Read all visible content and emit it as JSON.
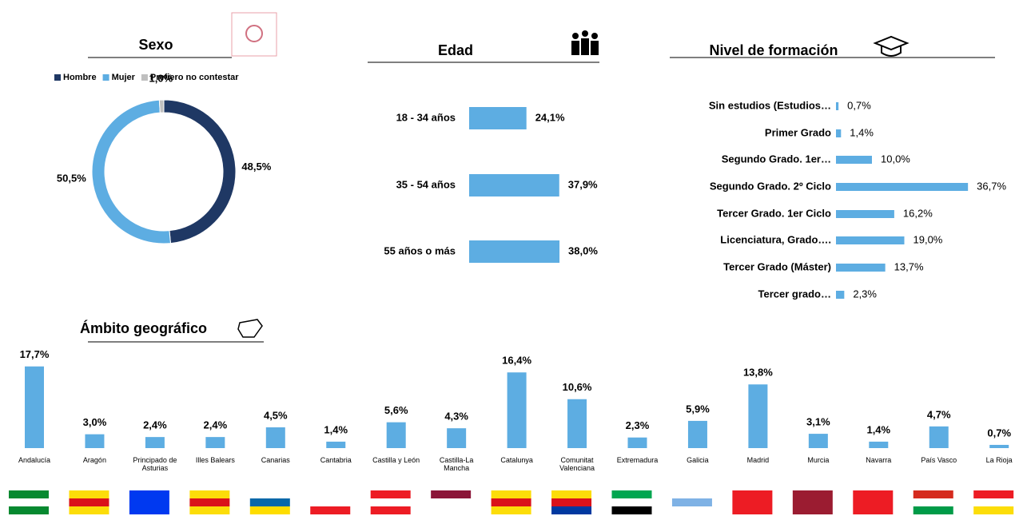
{
  "chart_data": [
    {
      "type": "donut",
      "title": "Sexo",
      "categories": [
        "Hombre",
        "Mujer",
        "Prefiero no contestar"
      ],
      "values": [
        48.5,
        50.5,
        1.0
      ],
      "value_labels": [
        "48,5%",
        "50,5%",
        "1,0%"
      ],
      "colors": [
        "#1f3864",
        "#5dade2",
        "#bfbfbf"
      ]
    },
    {
      "type": "hbar",
      "title": "Edad",
      "categories": [
        "18 - 34 años",
        "35 - 54 años",
        "55 años o más"
      ],
      "values": [
        24.1,
        37.9,
        38.0
      ],
      "value_labels": [
        "24,1%",
        "37,9%",
        "38,0%"
      ],
      "color": "#5dade2",
      "xlim": [
        0,
        40
      ]
    },
    {
      "type": "hbar",
      "title": "Nivel de formación",
      "categories": [
        "Sin estudios (Estudios…",
        "Primer Grado",
        "Segundo Grado. 1er…",
        "Segundo Grado. 2º Ciclo",
        "Tercer Grado. 1er Ciclo",
        "Licenciatura, Grado….",
        "Tercer Grado (Máster)",
        "Tercer grado…"
      ],
      "values": [
        0.7,
        1.4,
        10.0,
        36.7,
        16.2,
        19.0,
        13.7,
        2.3
      ],
      "value_labels": [
        "0,7%",
        "1,4%",
        "10,0%",
        "36,7%",
        "16,2%",
        "19,0%",
        "13,7%",
        "2,3%"
      ],
      "color": "#5dade2",
      "xlim": [
        0,
        40
      ]
    },
    {
      "type": "bar",
      "title": "Ámbito geográfico",
      "categories": [
        "Andalucía",
        "Aragón",
        "Principado de Asturias",
        "Illes Balears",
        "Canarias",
        "Cantabria",
        "Castilla y León",
        "Castilla-La Mancha",
        "Catalunya",
        "Comunitat Valenciana",
        "Extremadura",
        "Galicia",
        "Madrid",
        "Murcia",
        "Navarra",
        "País Vasco",
        "La Rioja"
      ],
      "values": [
        17.7,
        3.0,
        2.4,
        2.4,
        4.5,
        1.4,
        5.6,
        4.3,
        16.4,
        10.6,
        2.3,
        5.9,
        13.8,
        3.1,
        1.4,
        4.7,
        0.7
      ],
      "value_labels": [
        "17,7%",
        "3,0%",
        "2,4%",
        "2,4%",
        "4,5%",
        "1,4%",
        "5,6%",
        "4,3%",
        "16,4%",
        "10,6%",
        "2,3%",
        "5,9%",
        "13,8%",
        "3,1%",
        "1,4%",
        "4,7%",
        "0,7%"
      ],
      "color": "#5dade2",
      "ylim": [
        0,
        18
      ]
    }
  ]
}
